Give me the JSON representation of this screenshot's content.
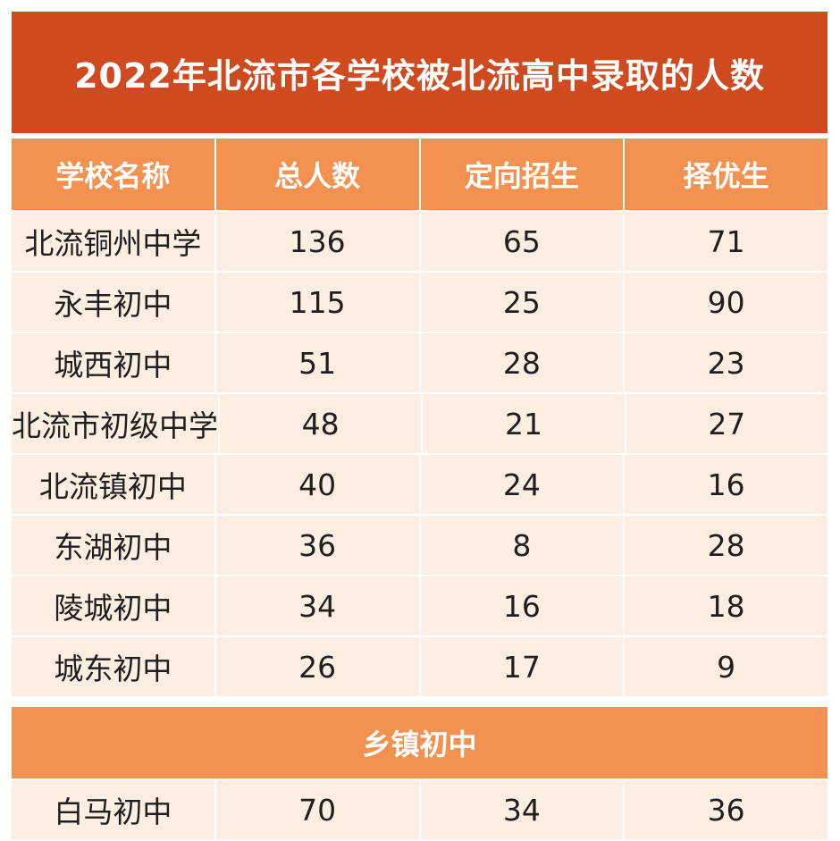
{
  "title": "2022年北流市各学校被北流高中录取的人数",
  "headers": [
    "学校名称",
    "总人数",
    "定向招生",
    "择优生"
  ],
  "rows": [
    [
      "北流铜州中学",
      "136",
      "65",
      "71"
    ],
    [
      "永丰初中",
      "115",
      "25",
      "90"
    ],
    [
      "城西初中",
      "51",
      "28",
      "23"
    ],
    [
      "北流市初级中学",
      "48",
      "21",
      "27"
    ],
    [
      "北流镇初中",
      "40",
      "24",
      "16"
    ],
    [
      "东湖初中",
      "36",
      "8",
      "28"
    ],
    [
      "陵城初中",
      "34",
      "16",
      "18"
    ],
    [
      "城东初中",
      "26",
      "17",
      "9"
    ]
  ],
  "section": {
    "label": "乡镇初中",
    "rows": [
      [
        "白马初中",
        "70",
        "34",
        "36"
      ]
    ]
  },
  "colors": {
    "title_bg": "#cf4a1f",
    "header_bg": "#f39150",
    "row_bg": "#fdeee2"
  }
}
